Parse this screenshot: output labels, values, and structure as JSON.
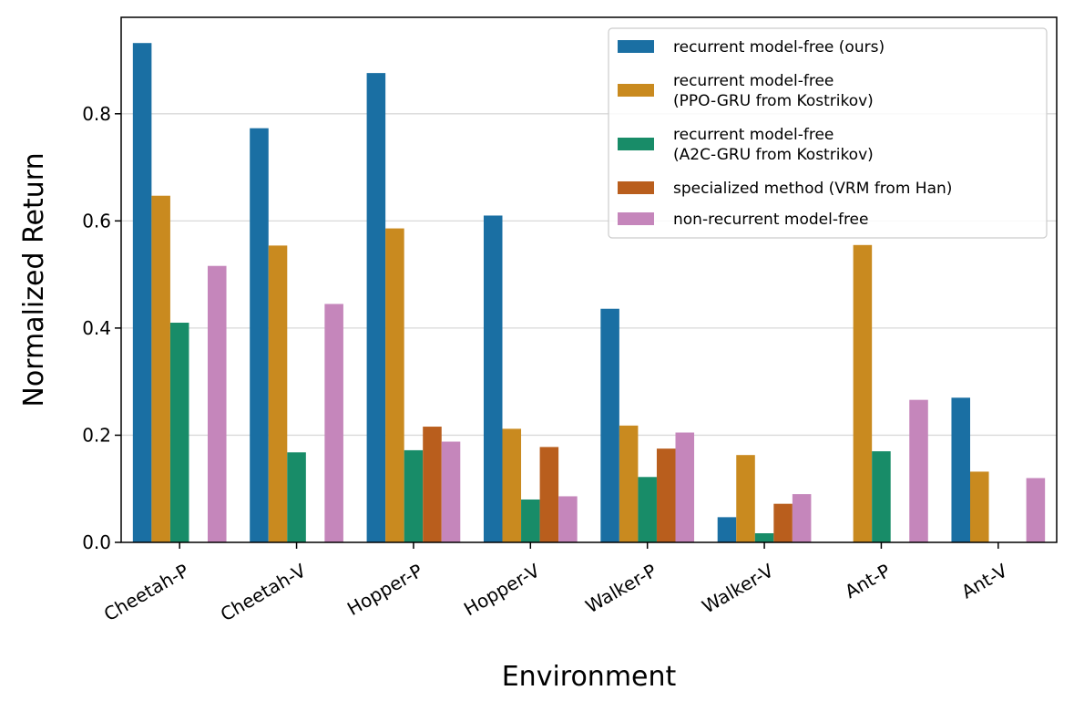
{
  "chart_data": {
    "type": "bar",
    "xlabel": "Environment",
    "ylabel": "Normalized Return",
    "ylim": [
      0,
      0.98
    ],
    "yticks": [
      0.0,
      0.2,
      0.4,
      0.6,
      0.8
    ],
    "grid": "horizontal",
    "legend_position": "top-right",
    "categories": [
      "Cheetah-P",
      "Cheetah-V",
      "Hopper-P",
      "Hopper-V",
      "Walker-P",
      "Walker-V",
      "Ant-P",
      "Ant-V"
    ],
    "series": [
      {
        "name": "recurrent model-free (ours)",
        "color": "#1a6fa3",
        "values": [
          0.932,
          0.773,
          0.876,
          0.61,
          0.436,
          0.047,
          null,
          0.27
        ]
      },
      {
        "name": "recurrent model-free\n(PPO-GRU from Kostrikov)",
        "color": "#c98a1f",
        "values": [
          0.647,
          0.554,
          0.586,
          0.212,
          0.218,
          0.163,
          0.555,
          0.132
        ]
      },
      {
        "name": "recurrent model-free\n(A2C-GRU from Kostrikov)",
        "color": "#188c68",
        "values": [
          0.41,
          0.168,
          0.172,
          0.08,
          0.122,
          0.017,
          0.17,
          null
        ]
      },
      {
        "name": "specialized method (VRM from Han)",
        "color": "#b95e1d",
        "values": [
          null,
          null,
          0.216,
          0.178,
          0.175,
          0.072,
          null,
          null
        ]
      },
      {
        "name": "non-recurrent model-free",
        "color": "#c586bb",
        "values": [
          0.516,
          0.445,
          0.188,
          0.086,
          0.205,
          0.09,
          0.266,
          0.12
        ]
      }
    ]
  }
}
